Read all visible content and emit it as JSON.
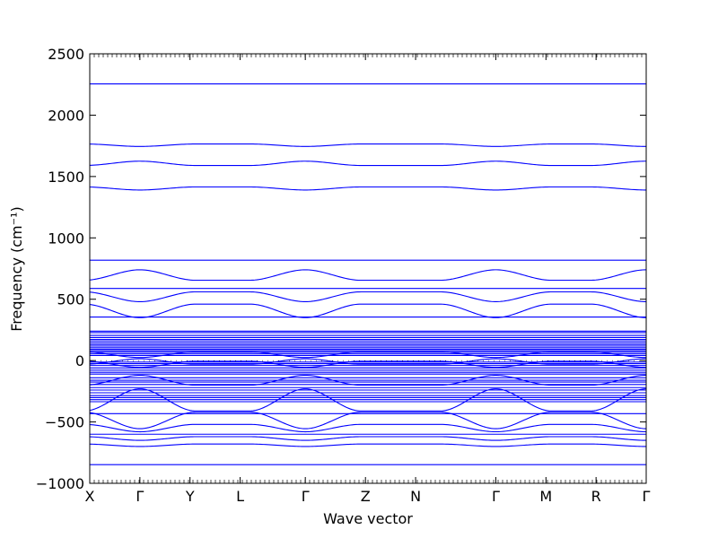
{
  "chart_data": {
    "type": "line",
    "title": "",
    "xlabel": "Wave vector",
    "ylabel": "Frequency (cm⁻¹)",
    "ylim": [
      -1000,
      2500
    ],
    "yticks": [
      -1000,
      -500,
      0,
      500,
      1000,
      1500,
      2000,
      2500
    ],
    "ytick_labels": [
      "−1000",
      "−500",
      "0",
      "500",
      "1000",
      "1500",
      "2000",
      "2500"
    ],
    "xticks": [
      {
        "label": "X",
        "pos": 0
      },
      {
        "label": "Γ",
        "pos": 1
      },
      {
        "label": "Y",
        "pos": 2
      },
      {
        "label": "L",
        "pos": 3
      },
      {
        "label": "Γ",
        "pos": 4.3
      },
      {
        "label": "Z",
        "pos": 5.5
      },
      {
        "label": "N",
        "pos": 6.5
      },
      {
        "label": "Γ",
        "pos": 8.1
      },
      {
        "label": "M",
        "pos": 9.1
      },
      {
        "label": "R",
        "pos": 10.1
      },
      {
        "label": "Γ",
        "pos": 11.1
      }
    ],
    "xlim": [
      0,
      11.1
    ],
    "line_color": "#0000ff",
    "bands": {
      "flat": [
        2255,
        818,
        588,
        355,
        240,
        228,
        205,
        188,
        172,
        160,
        145,
        130,
        118,
        105,
        92,
        80,
        68,
        55,
        42,
        -12,
        -25,
        -40,
        -60,
        -78,
        -95,
        -110,
        -140,
        -160,
        -175,
        -195,
        -220,
        -240,
        -262,
        -285,
        -302,
        -318,
        -335,
        -432,
        -600,
        -848
      ],
      "modulated": [
        {
          "gamma": 1745,
          "edge": 1765
        },
        {
          "gamma": 1625,
          "edge": 1590
        },
        {
          "gamma": 1390,
          "edge": 1415
        },
        {
          "gamma": 740,
          "edge": 655
        },
        {
          "gamma": 480,
          "edge": 560
        },
        {
          "gamma": 350,
          "edge": 460
        },
        {
          "gamma": -650,
          "edge": -620
        },
        {
          "gamma": -700,
          "edge": -680
        },
        {
          "gamma": -555,
          "edge": -420
        },
        {
          "gamma": -580,
          "edge": -520
        },
        {
          "gamma": -230,
          "edge": -410
        },
        {
          "gamma": -120,
          "edge": -200
        },
        {
          "gamma": 15,
          "edge": -30
        },
        {
          "gamma": 25,
          "edge": 70
        },
        {
          "gamma": -55,
          "edge": -5
        }
      ]
    }
  }
}
